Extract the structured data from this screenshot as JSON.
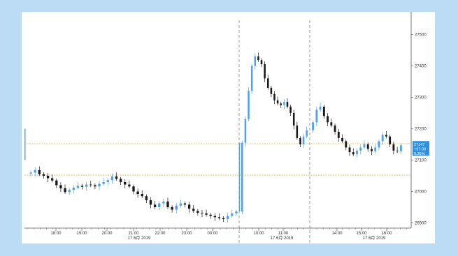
{
  "colors": {
    "background": "#bcdcf6",
    "up": "#4ea3ea",
    "down": "#1a1a1a",
    "reference_line": "#f0b43c",
    "session_divider": "#888888",
    "badge": "#2f8fe0",
    "axis": "#555555"
  },
  "chart_data": {
    "type": "candlestick",
    "title": "",
    "xlabel": "",
    "ylabel": "",
    "ylim": [
      26890,
      27545
    ],
    "y_ticks": [
      "27500",
      "27400",
      "27300",
      "27200",
      "27100",
      "27000",
      "26900"
    ],
    "x_ticks": [
      "18:00",
      "19:00",
      "20:00",
      "21:00",
      "22:00",
      "23:00",
      "00:00",
      "10:00",
      "11:00",
      "14:00",
      "15:00",
      "16:00"
    ],
    "date_labels": [
      "17 6月 2019",
      "17 6月 2019",
      "17 6月 2019"
    ],
    "reference_lines": [
      27152,
      27052
    ],
    "last_price_badge": [
      "27147",
      "+97.00",
      "0.36%"
    ],
    "series": [
      {
        "session": "night",
        "start_time": "17:30",
        "values": [
          27060,
          27068,
          27055,
          27050,
          27042,
          27035,
          27020,
          27010,
          26998,
          27005,
          27012,
          27018,
          27015,
          27022,
          27020,
          27016,
          27024,
          27030,
          27036,
          27048,
          27040,
          27030,
          27022,
          27016,
          27000,
          26992,
          26985,
          26972,
          26958,
          26950,
          26962,
          26968,
          26950,
          26942,
          26955,
          26962,
          26958,
          26945,
          26938,
          26932,
          26930,
          26926,
          26922,
          26918,
          26915,
          26912,
          26922,
          26930,
          26936
        ]
      },
      {
        "session": "morning",
        "start_time": "09:00",
        "values": [
          27155,
          27230,
          27320,
          27400,
          27430,
          27418,
          27405,
          27360,
          27330,
          27310,
          27290,
          27280,
          27275,
          27285,
          27270,
          27250,
          27210,
          27170,
          27150,
          27175,
          27195
        ]
      },
      {
        "session": "afternoon",
        "start_time": "13:30",
        "values": [
          27220,
          27260,
          27270,
          27240,
          27220,
          27210,
          27190,
          27170,
          27160,
          27140,
          27125,
          27118,
          27130,
          27140,
          27150,
          27135,
          27128,
          27140,
          27160,
          27180,
          27175,
          27150,
          27130,
          27128,
          27147
        ]
      }
    ]
  }
}
